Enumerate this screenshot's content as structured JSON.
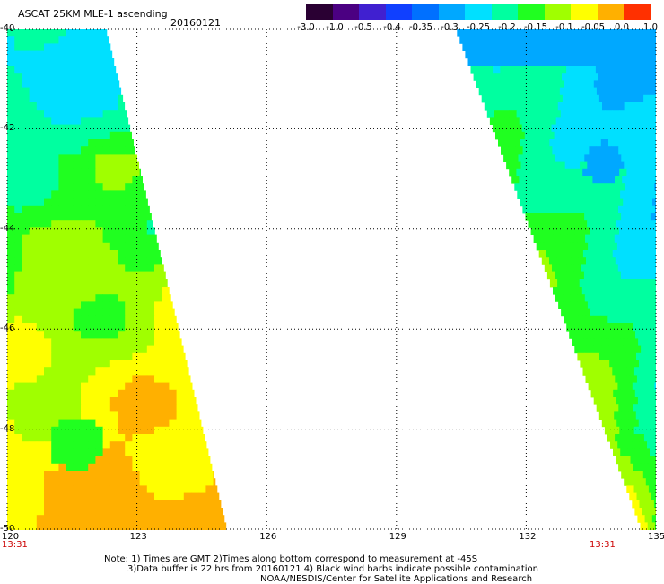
{
  "header": {
    "title": "ASCAT 25KM MLE-1 ascending",
    "date": "20160121"
  },
  "colorbar": {
    "labels": [
      "-3.0",
      "-1.0",
      "-0.5",
      "-0.4",
      "-0.35",
      "-0.3",
      "-0.25",
      "-0.2",
      "-0.15",
      "-0.1",
      "-0.05",
      "0.0",
      "1.0"
    ],
    "colors": [
      "#2a0033",
      "#4b0082",
      "#4020d0",
      "#1040ff",
      "#0070ff",
      "#00a8ff",
      "#00e0ff",
      "#00ffa0",
      "#20ff20",
      "#a0ff00",
      "#ffff00",
      "#ffb000",
      "#ff3000"
    ]
  },
  "map": {
    "lon_range": [
      120,
      135
    ],
    "lat_range": [
      -40,
      -50
    ],
    "lon_ticks": [
      "120",
      "123",
      "126",
      "129",
      "132",
      "135"
    ],
    "lat_ticks": [
      "-40",
      "-42",
      "-44",
      "-46",
      "-48",
      "-50"
    ],
    "time_left": "13:31",
    "time_right": "13:31",
    "swaths": [
      {
        "name": "west-swath",
        "edge_top_lon": 122.3,
        "edge_bottom_lon": 125.1
      },
      {
        "name": "east-swath",
        "edge_top_lon": 130.4,
        "edge_bottom_lon": 134.7
      }
    ]
  },
  "notes": {
    "line1": "Note: 1) Times are GMT 2)Times along bottom correspond to measurement at -45S",
    "line2": "3)Data buffer is 22 hrs from 20160121 4) Black wind barbs indicate possible contamination",
    "line3": "NOAA/NESDIS/Center for Satellite Applications and Research"
  }
}
